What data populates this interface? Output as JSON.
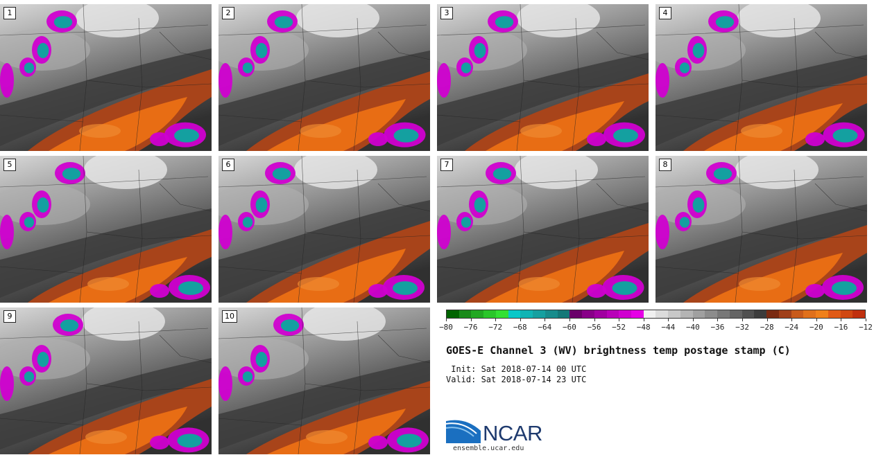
{
  "panels": [
    {
      "label": "1",
      "variant": 0
    },
    {
      "label": "2",
      "variant": 1
    },
    {
      "label": "3",
      "variant": 2
    },
    {
      "label": "4",
      "variant": 3
    },
    {
      "label": "5",
      "variant": 4
    },
    {
      "label": "6",
      "variant": 5
    },
    {
      "label": "7",
      "variant": 6
    },
    {
      "label": "8",
      "variant": 7
    },
    {
      "label": "9",
      "variant": 8
    },
    {
      "label": "10",
      "variant": 9
    }
  ],
  "colorbar": {
    "colors": [
      "#006400",
      "#1a8a1a",
      "#22a822",
      "#2ac62a",
      "#33e033",
      "#08c8c8",
      "#10b4b4",
      "#16a0a0",
      "#188c8c",
      "#157878",
      "#6a006a",
      "#880088",
      "#a000a0",
      "#b800b8",
      "#d000d0",
      "#e600e6",
      "#f0f0f0",
      "#dcdcdc",
      "#c8c8c8",
      "#b4b4b4",
      "#a0a0a0",
      "#8c8c8c",
      "#787878",
      "#646464",
      "#505050",
      "#3c3c3c",
      "#7a2a12",
      "#a0401a",
      "#c85a1a",
      "#e0701a",
      "#f0801a",
      "#e05a16",
      "#d04812",
      "#c0300e"
    ],
    "tick_labels": [
      "−80",
      "−76",
      "−72",
      "−68",
      "−64",
      "−60",
      "−56",
      "−52",
      "−48",
      "−44",
      "−40",
      "−36",
      "−32",
      "−28",
      "−24",
      "−20",
      "−16",
      "−12"
    ]
  },
  "title": "GOES-E Channel 3 (WV) brightness temp postage stamp (C)",
  "init_line": " Init: Sat 2018-07-14 00 UTC",
  "valid_line": "Valid: Sat 2018-07-14 23 UTC",
  "logo": {
    "text": "NCAR",
    "site": "ensemble.ucar.edu"
  },
  "colors": {
    "orange_core": "#e86d14",
    "orange_edge": "#a8441a",
    "magenta": "#d000d0",
    "cyan": "#14a0a0",
    "gray_light": "#c8c8c8",
    "gray_dark": "#3c3c3c"
  }
}
